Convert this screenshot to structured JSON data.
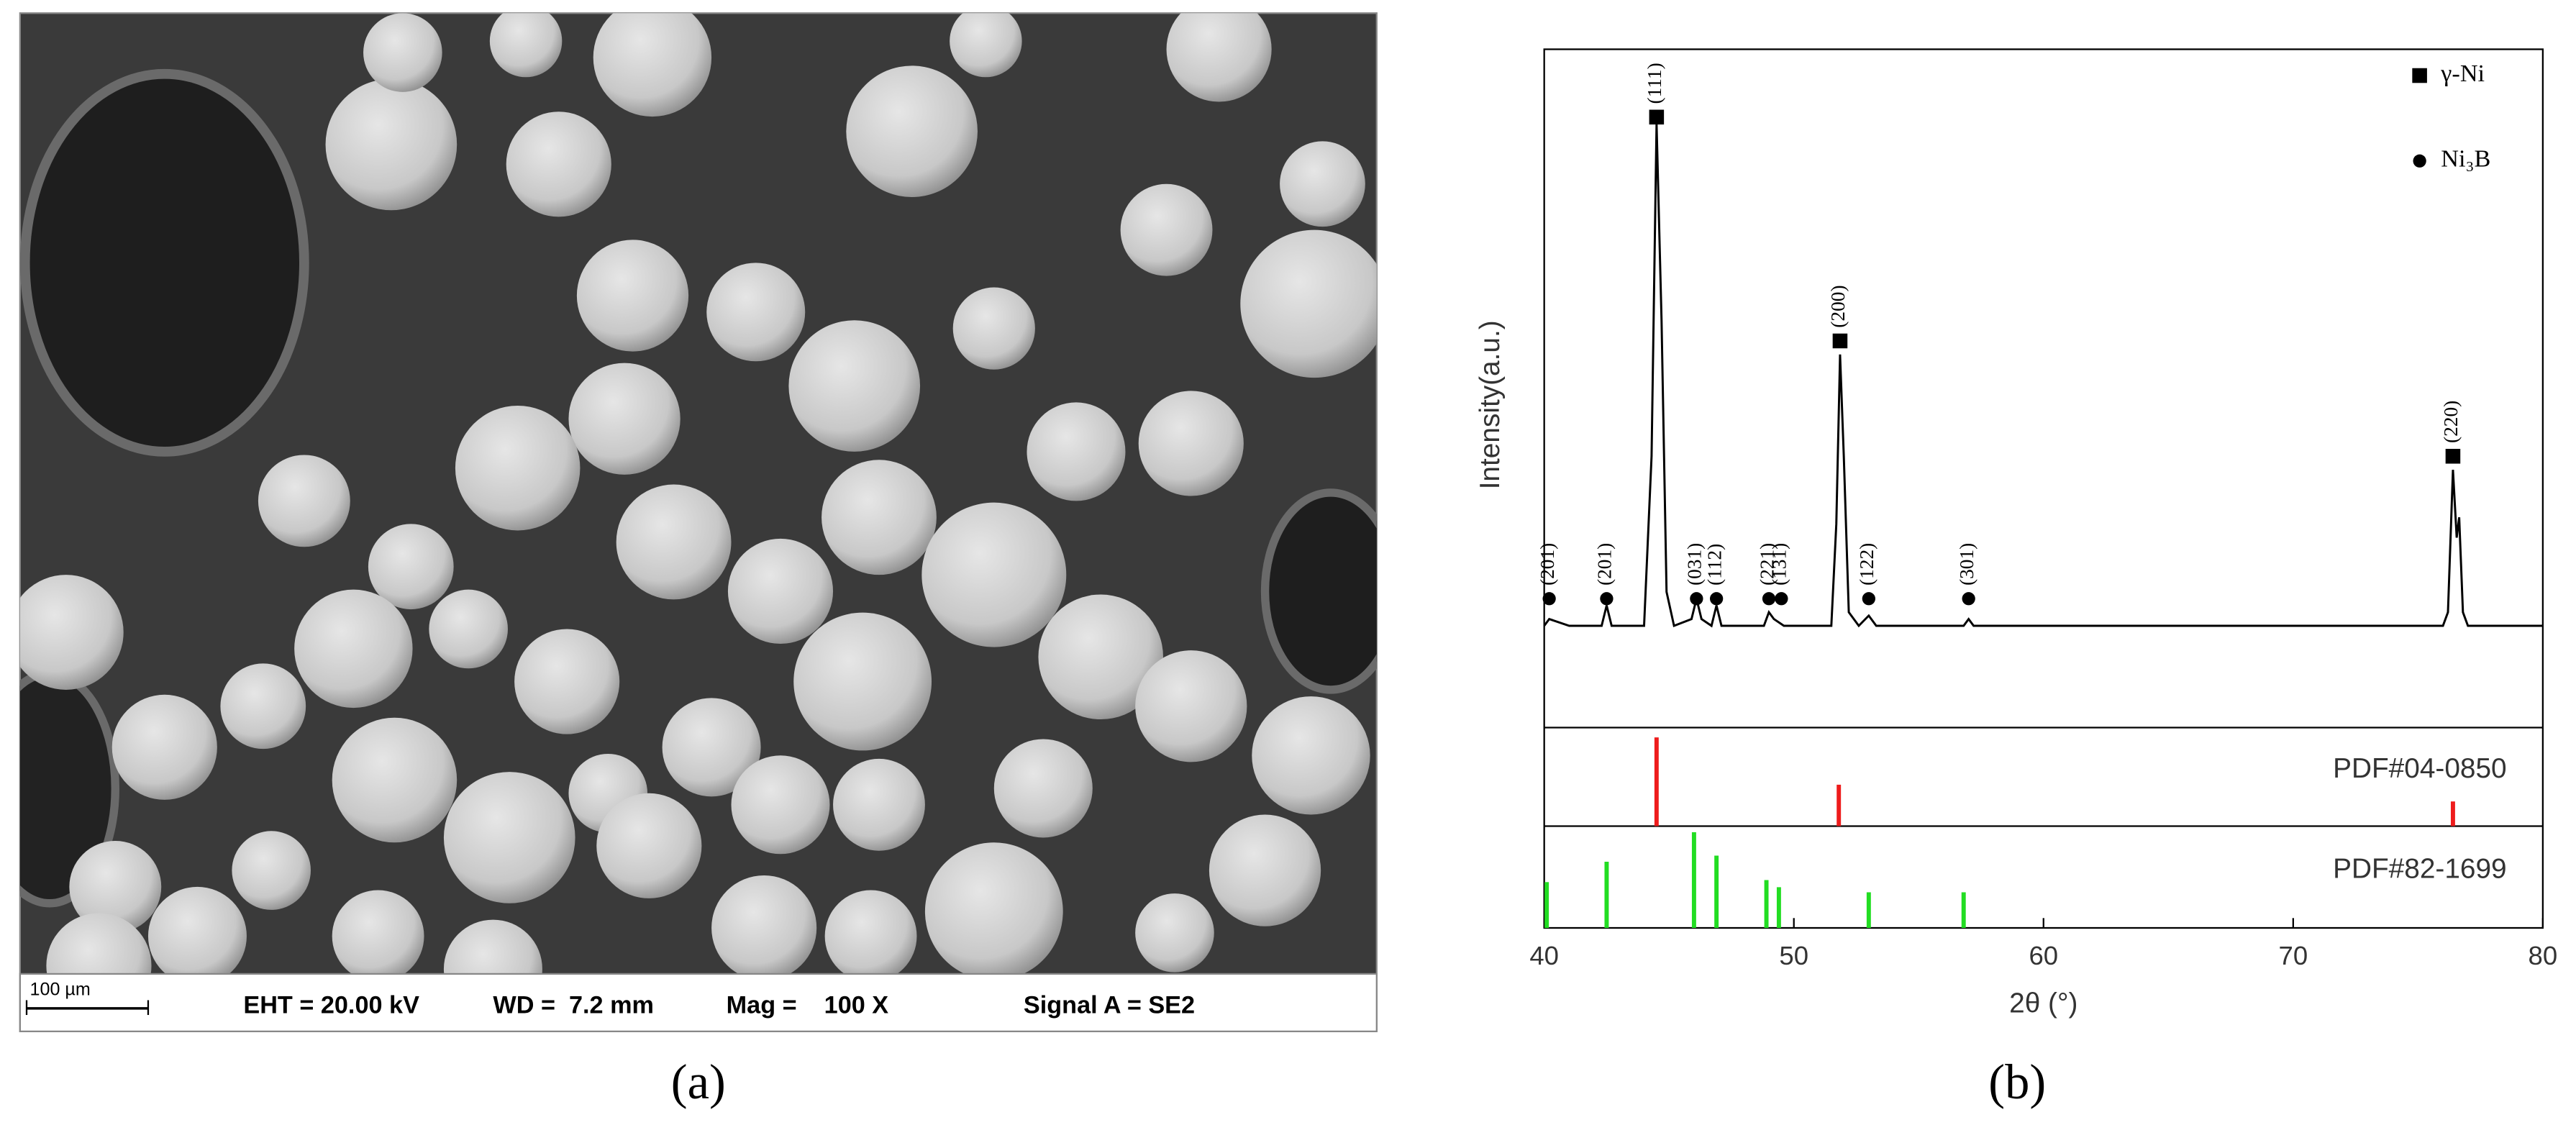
{
  "sem_image": {
    "scale_bar": "100 µm",
    "info": [
      "EHT = 20.00 kV",
      "WD =  7.2 mm",
      "Mag =    100 X",
      "Signal A = SE2"
    ],
    "caption": "(a)"
  },
  "chart_caption": "(b)",
  "chart_data": [
    {
      "type": "line",
      "ylabel": "Intensity(a.u.)",
      "xlim": [
        40,
        80
      ],
      "ylim": [
        0,
        100
      ],
      "series": [
        {
          "color": "#000000",
          "x": [
            40,
            40.2,
            41,
            42.3,
            42.5,
            42.7,
            44.0,
            44.3,
            44.5,
            44.7,
            44.9,
            45.2,
            45.9,
            46.1,
            46.3,
            46.7,
            46.9,
            47.1,
            48.8,
            49.0,
            49.2,
            49.6,
            51.5,
            51.7,
            51.85,
            52.0,
            52.2,
            52.6,
            53.0,
            53.3,
            56.8,
            57.0,
            57.2,
            76.0,
            76.2,
            76.4,
            76.55,
            76.65,
            76.8,
            77.0,
            80
          ],
          "values": [
            15,
            16,
            15,
            15,
            18,
            15,
            15,
            40,
            89,
            60,
            20,
            15,
            16,
            19,
            16,
            15,
            18,
            15,
            15,
            17,
            16,
            15,
            15,
            30,
            55,
            40,
            17,
            15,
            16.5,
            15,
            15,
            16,
            15,
            15,
            17,
            38,
            28,
            31,
            17,
            15,
            15
          ]
        }
      ],
      "annotations": [
        {
          "x": 40.2,
          "y": 19,
          "label": "(201)",
          "marker": "circle"
        },
        {
          "x": 42.5,
          "y": 19,
          "label": "(201)",
          "marker": "circle"
        },
        {
          "x": 44.5,
          "y": 90,
          "label": "(111)",
          "marker": "square"
        },
        {
          "x": 46.1,
          "y": 19,
          "label": "(031)",
          "marker": "circle"
        },
        {
          "x": 46.9,
          "y": 19,
          "label": "(112)",
          "marker": "circle"
        },
        {
          "x": 49.0,
          "y": 19,
          "label": "(221)",
          "marker": "circle"
        },
        {
          "x": 49.5,
          "y": 19,
          "label": "(131)",
          "marker": "circle"
        },
        {
          "x": 51.85,
          "y": 57,
          "label": "(200)",
          "marker": "square"
        },
        {
          "x": 53.0,
          "y": 19,
          "label": "(122)",
          "marker": "circle"
        },
        {
          "x": 57.0,
          "y": 19,
          "label": "(301)",
          "marker": "circle"
        },
        {
          "x": 76.4,
          "y": 40,
          "label": "(220)",
          "marker": "square"
        }
      ],
      "legend": [
        {
          "name": "γ-Ni",
          "marker": "square"
        },
        {
          "name": "Ni₃B",
          "marker": "circle"
        }
      ]
    },
    {
      "type": "bar",
      "xlim": [
        40,
        80
      ],
      "ylim": [
        0,
        100
      ],
      "series": [
        {
          "name": "PDF#04-0850",
          "color": "#ee1c1c",
          "x": [
            44.5,
            51.8,
            76.4
          ],
          "values": [
            90,
            42,
            25
          ]
        }
      ]
    },
    {
      "type": "bar",
      "xlim": [
        40,
        80
      ],
      "ylim": [
        0,
        100
      ],
      "xlabel": "2θ (°)",
      "xticks": [
        40,
        50,
        60,
        70,
        80
      ],
      "series": [
        {
          "name": "PDF#82-1699",
          "color": "#22dd22",
          "x": [
            40.1,
            42.5,
            46.0,
            46.9,
            48.9,
            49.4,
            53.0,
            56.8
          ],
          "values": [
            45,
            65,
            94,
            71,
            47,
            40,
            35,
            35
          ]
        }
      ]
    }
  ]
}
